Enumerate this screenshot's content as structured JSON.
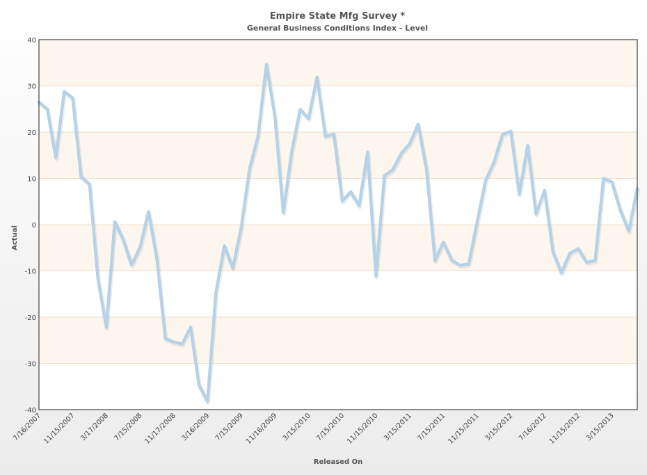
{
  "chart_data": {
    "type": "line",
    "title": "Empire State Mfg Survey *",
    "subtitle": "General Business Conditions Index - Level",
    "xlabel": "Released On",
    "ylabel": "Actual",
    "ylim": [
      -40,
      40
    ],
    "yticks": [
      "40",
      "30",
      "20",
      "10",
      "0",
      "-10",
      "-20",
      "-30",
      "-40"
    ],
    "xticks": [
      "7/16/2007",
      "11/15/2007",
      "3/17/2008",
      "7/15/2008",
      "11/17/2008",
      "3/16/2009",
      "7/15/2009",
      "11/16/2009",
      "3/15/2010",
      "7/15/2010",
      "11/15/2010",
      "3/15/2011",
      "7/15/2011",
      "11/15/2011",
      "3/15/2012",
      "7/16/2012",
      "11/15/2012",
      "3/15/2013"
    ],
    "grid": true,
    "colors": {
      "line": "#b5d2e8",
      "band": "#fdf6ee",
      "gridline": "#f3ddc8",
      "border": "#444444"
    },
    "series": [
      {
        "values": [
          26.5,
          25,
          14.5,
          28.8,
          27.4,
          10.3,
          8.8,
          -11.7,
          -22.2,
          0.6,
          -3.2,
          -8.7,
          -4.9,
          2.8,
          -7.4,
          -24.6,
          -25.4,
          -25.8,
          -22.2,
          -34.7,
          -38.2,
          -14.7,
          -4.6,
          -9.4,
          -0.7,
          12.1,
          19.1,
          34.6,
          23.4,
          2.6,
          15.9,
          24.9,
          22.9,
          31.9,
          19.1,
          19.6,
          5.1,
          7.1,
          4.1,
          15.7,
          -11.1,
          10.6,
          11.9,
          15.4,
          17.5,
          21.7,
          11.9,
          -7.8,
          -3.8,
          -7.7,
          -8.8,
          -8.5,
          0.6,
          9.5,
          13.5,
          19.5,
          20.2,
          6.6,
          17.1,
          2.3,
          7.4,
          -5.9,
          -10.4,
          -6.2,
          -5.2,
          -8.1,
          -7.8,
          10,
          9.2,
          3.1,
          -1.4,
          7.8
        ]
      }
    ]
  }
}
